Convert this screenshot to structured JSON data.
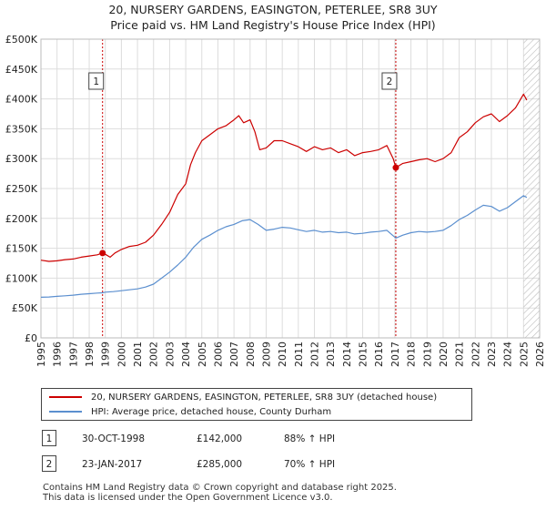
{
  "title_line1": "20, NURSERY GARDENS, EASINGTON, PETERLEE, SR8 3UY",
  "title_line2": "Price paid vs. HM Land Registry's House Price Index (HPI)",
  "colors": {
    "property": "#cc0000",
    "hpi": "#5b8fcf",
    "marker_line": "#cc0000",
    "future_hatch": "#bbbbbb"
  },
  "chart_data": {
    "type": "line",
    "title": "Price paid vs. HM Land Registry's House Price Index (HPI)",
    "xlabel": "",
    "ylabel": "",
    "xlim": [
      1995,
      2026
    ],
    "ylim": [
      0,
      500000
    ],
    "grid": true,
    "y_ticks": [
      {
        "value": 0,
        "label": "£0"
      },
      {
        "value": 50000,
        "label": "£50K"
      },
      {
        "value": 100000,
        "label": "£100K"
      },
      {
        "value": 150000,
        "label": "£150K"
      },
      {
        "value": 200000,
        "label": "£200K"
      },
      {
        "value": 250000,
        "label": "£250K"
      },
      {
        "value": 300000,
        "label": "£300K"
      },
      {
        "value": 350000,
        "label": "£350K"
      },
      {
        "value": 400000,
        "label": "£400K"
      },
      {
        "value": 450000,
        "label": "£450K"
      },
      {
        "value": 500000,
        "label": "£500K"
      }
    ],
    "x_ticks": [
      1995,
      1996,
      1997,
      1998,
      1999,
      2000,
      2001,
      2002,
      2003,
      2004,
      2005,
      2006,
      2007,
      2008,
      2009,
      2010,
      2011,
      2012,
      2013,
      2014,
      2015,
      2016,
      2017,
      2018,
      2019,
      2020,
      2021,
      2022,
      2023,
      2024,
      2025,
      2026
    ],
    "future_from": 2025.0,
    "series": [
      {
        "name": "20, NURSERY GARDENS, EASINGTON, PETERLEE, SR8 3UY (detached house)",
        "points": [
          [
            1995.0,
            130000
          ],
          [
            1995.5,
            128000
          ],
          [
            1996.0,
            129000
          ],
          [
            1996.5,
            131000
          ],
          [
            1997.0,
            132000
          ],
          [
            1997.5,
            135000
          ],
          [
            1998.0,
            137000
          ],
          [
            1998.5,
            139000
          ],
          [
            1998.83,
            142000
          ],
          [
            1999.0,
            140000
          ],
          [
            1999.3,
            135000
          ],
          [
            1999.6,
            142000
          ],
          [
            2000.0,
            148000
          ],
          [
            2000.5,
            153000
          ],
          [
            2001.0,
            155000
          ],
          [
            2001.5,
            160000
          ],
          [
            2002.0,
            172000
          ],
          [
            2002.5,
            190000
          ],
          [
            2003.0,
            210000
          ],
          [
            2003.5,
            240000
          ],
          [
            2004.0,
            258000
          ],
          [
            2004.3,
            290000
          ],
          [
            2004.6,
            310000
          ],
          [
            2005.0,
            330000
          ],
          [
            2005.5,
            340000
          ],
          [
            2006.0,
            350000
          ],
          [
            2006.5,
            355000
          ],
          [
            2007.0,
            365000
          ],
          [
            2007.3,
            372000
          ],
          [
            2007.6,
            360000
          ],
          [
            2008.0,
            365000
          ],
          [
            2008.3,
            345000
          ],
          [
            2008.6,
            315000
          ],
          [
            2009.0,
            318000
          ],
          [
            2009.5,
            330000
          ],
          [
            2010.0,
            330000
          ],
          [
            2010.5,
            325000
          ],
          [
            2011.0,
            320000
          ],
          [
            2011.5,
            312000
          ],
          [
            2012.0,
            320000
          ],
          [
            2012.5,
            315000
          ],
          [
            2013.0,
            318000
          ],
          [
            2013.5,
            310000
          ],
          [
            2014.0,
            315000
          ],
          [
            2014.5,
            305000
          ],
          [
            2015.0,
            310000
          ],
          [
            2015.5,
            312000
          ],
          [
            2016.0,
            315000
          ],
          [
            2016.5,
            322000
          ],
          [
            2016.9,
            300000
          ],
          [
            2017.06,
            285000
          ],
          [
            2017.5,
            292000
          ],
          [
            2018.0,
            295000
          ],
          [
            2018.5,
            298000
          ],
          [
            2019.0,
            300000
          ],
          [
            2019.5,
            295000
          ],
          [
            2020.0,
            300000
          ],
          [
            2020.5,
            310000
          ],
          [
            2021.0,
            335000
          ],
          [
            2021.5,
            345000
          ],
          [
            2022.0,
            360000
          ],
          [
            2022.5,
            370000
          ],
          [
            2023.0,
            375000
          ],
          [
            2023.5,
            362000
          ],
          [
            2024.0,
            372000
          ],
          [
            2024.5,
            385000
          ],
          [
            2025.0,
            408000
          ],
          [
            2025.2,
            398000
          ]
        ]
      },
      {
        "name": "HPI: Average price, detached house, County Durham",
        "points": [
          [
            1995.0,
            68000
          ],
          [
            1995.5,
            68500
          ],
          [
            1996.0,
            69500
          ],
          [
            1996.5,
            70500
          ],
          [
            1997.0,
            71500
          ],
          [
            1997.5,
            73000
          ],
          [
            1998.0,
            74000
          ],
          [
            1998.5,
            75000
          ],
          [
            1998.83,
            75500
          ],
          [
            1999.0,
            76500
          ],
          [
            1999.5,
            77500
          ],
          [
            2000.0,
            79000
          ],
          [
            2000.5,
            80500
          ],
          [
            2001.0,
            82000
          ],
          [
            2001.5,
            85000
          ],
          [
            2002.0,
            90000
          ],
          [
            2002.5,
            100000
          ],
          [
            2003.0,
            110000
          ],
          [
            2003.5,
            122000
          ],
          [
            2004.0,
            135000
          ],
          [
            2004.5,
            152000
          ],
          [
            2005.0,
            165000
          ],
          [
            2005.5,
            172000
          ],
          [
            2006.0,
            180000
          ],
          [
            2006.5,
            186000
          ],
          [
            2007.0,
            190000
          ],
          [
            2007.5,
            196000
          ],
          [
            2008.0,
            198000
          ],
          [
            2008.5,
            190000
          ],
          [
            2009.0,
            180000
          ],
          [
            2009.5,
            182000
          ],
          [
            2010.0,
            185000
          ],
          [
            2010.5,
            184000
          ],
          [
            2011.0,
            181000
          ],
          [
            2011.5,
            178000
          ],
          [
            2012.0,
            180000
          ],
          [
            2012.5,
            177000
          ],
          [
            2013.0,
            178000
          ],
          [
            2013.5,
            176000
          ],
          [
            2014.0,
            177000
          ],
          [
            2014.5,
            174000
          ],
          [
            2015.0,
            175000
          ],
          [
            2015.5,
            177000
          ],
          [
            2016.0,
            178000
          ],
          [
            2016.5,
            180000
          ],
          [
            2017.06,
            167000
          ],
          [
            2017.5,
            172000
          ],
          [
            2018.0,
            176000
          ],
          [
            2018.5,
            178000
          ],
          [
            2019.0,
            177000
          ],
          [
            2019.5,
            178000
          ],
          [
            2020.0,
            180000
          ],
          [
            2020.5,
            188000
          ],
          [
            2021.0,
            198000
          ],
          [
            2021.5,
            205000
          ],
          [
            2022.0,
            214000
          ],
          [
            2022.5,
            222000
          ],
          [
            2023.0,
            220000
          ],
          [
            2023.5,
            212000
          ],
          [
            2024.0,
            218000
          ],
          [
            2024.5,
            228000
          ],
          [
            2025.0,
            238000
          ],
          [
            2025.2,
            235000
          ]
        ]
      }
    ],
    "sales": [
      {
        "id": "1",
        "x": 1998.83,
        "value": 142000
      },
      {
        "id": "2",
        "x": 2017.06,
        "value": 285000
      }
    ]
  },
  "legend": {
    "property_label": "20, NURSERY GARDENS, EASINGTON, PETERLEE, SR8 3UY (detached house)",
    "hpi_label": "HPI: Average price, detached house, County Durham"
  },
  "sales_table": [
    {
      "id": "1",
      "date": "30-OCT-1998",
      "price": "£142,000",
      "hpi": "88% ↑ HPI"
    },
    {
      "id": "2",
      "date": "23-JAN-2017",
      "price": "£285,000",
      "hpi": "70% ↑ HPI"
    }
  ],
  "footer": {
    "line1": "Contains HM Land Registry data © Crown copyright and database right 2025.",
    "line2": "This data is licensed under the Open Government Licence v3.0."
  }
}
